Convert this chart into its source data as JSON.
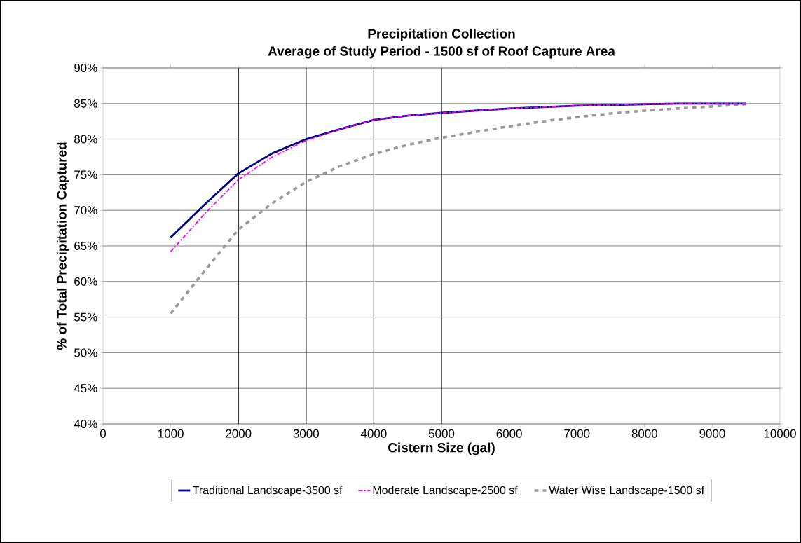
{
  "chart_data": {
    "type": "line",
    "title": "Precipitation Collection",
    "subtitle": "Average of Study Period - 1500 sf of Roof Capture Area",
    "xlabel": "Cistern Size (gal)",
    "ylabel": "% of Total Precipitation Captured",
    "x": [
      1000,
      1500,
      2000,
      2500,
      3000,
      3500,
      4000,
      4500,
      5000,
      5500,
      6000,
      6500,
      7000,
      7500,
      8000,
      8500,
      9000,
      9500
    ],
    "series": [
      {
        "name": "Traditional Landscape-3500 sf",
        "color": "#000080",
        "line_style": "solid",
        "values": [
          66.2,
          70.8,
          75.2,
          78.0,
          80.0,
          81.4,
          82.7,
          83.3,
          83.7,
          84.0,
          84.3,
          84.5,
          84.7,
          84.8,
          84.9,
          85.0,
          85.0,
          85.0
        ]
      },
      {
        "name": "Moderate Landscape-2500 sf",
        "color": "#ff00ff",
        "line_style": "dashed",
        "values": [
          64.2,
          69.5,
          74.3,
          77.5,
          79.8,
          81.4,
          82.7,
          83.3,
          83.7,
          84.0,
          84.3,
          84.5,
          84.7,
          84.8,
          84.9,
          85.0,
          85.0,
          85.0
        ]
      },
      {
        "name": "Water Wise Landscape-1500 sf",
        "color": "#999999",
        "line_style": "dotted",
        "values": [
          55.5,
          61.5,
          67.3,
          71.0,
          74.0,
          76.2,
          77.9,
          79.2,
          80.2,
          81.0,
          81.8,
          82.5,
          83.1,
          83.6,
          84.0,
          84.3,
          84.6,
          84.9
        ]
      }
    ],
    "xlim": [
      0,
      10000
    ],
    "xticks": [
      0,
      1000,
      2000,
      3000,
      4000,
      5000,
      6000,
      7000,
      8000,
      9000,
      10000
    ],
    "ylim": [
      40,
      90
    ],
    "yticks": [
      {
        "value": 40,
        "label": "40%"
      },
      {
        "value": 45,
        "label": "45%"
      },
      {
        "value": 50,
        "label": "50%"
      },
      {
        "value": 55,
        "label": "55%"
      },
      {
        "value": 60,
        "label": "60%"
      },
      {
        "value": 65,
        "label": "65%"
      },
      {
        "value": 70,
        "label": "70%"
      },
      {
        "value": 75,
        "label": "75%"
      },
      {
        "value": 80,
        "label": "80%"
      },
      {
        "value": 85,
        "label": "85%"
      },
      {
        "value": 90,
        "label": "90%"
      }
    ],
    "ref_lines": [
      {
        "axis": "x",
        "value": 2000,
        "color": "#000000"
      },
      {
        "axis": "x",
        "value": 3000,
        "color": "#000000"
      },
      {
        "axis": "x",
        "value": 4000,
        "color": "#000000"
      },
      {
        "axis": "x",
        "value": 5000,
        "color": "#000000"
      }
    ],
    "grid": "y",
    "legend": "bottom",
    "marker": "none"
  }
}
